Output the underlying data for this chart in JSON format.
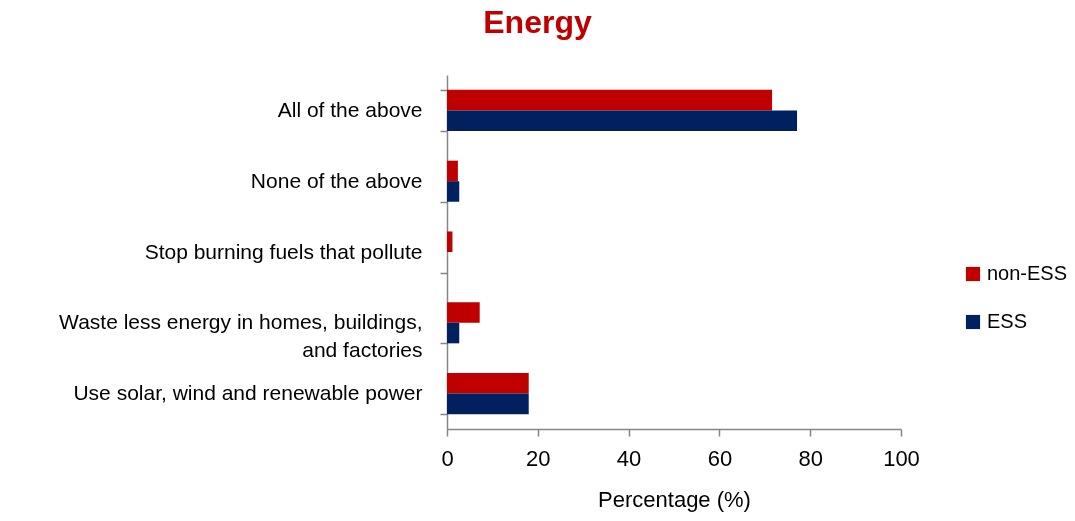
{
  "chart_data": {
    "type": "bar",
    "orientation": "horizontal",
    "title": "Energy",
    "xlabel": "Percentage (%)",
    "categories": [
      "All of the above",
      "None of the above",
      "Stop burning fuels that pollute",
      "Waste less energy in homes, buildings, and factories",
      "Use solar, wind and renewable power"
    ],
    "series": [
      {
        "name": "non-ESS",
        "color": "#c00000",
        "values": [
          71.6,
          2.4,
          1.2,
          7.2,
          18.0
        ]
      },
      {
        "name": "ESS",
        "color": "#002060",
        "values": [
          77.1,
          2.7,
          0,
          2.7,
          18.0
        ]
      }
    ],
    "xlim": [
      0,
      100
    ],
    "xticks": [
      0,
      20,
      40,
      60,
      80,
      100
    ],
    "grid": false,
    "legend": "right"
  }
}
